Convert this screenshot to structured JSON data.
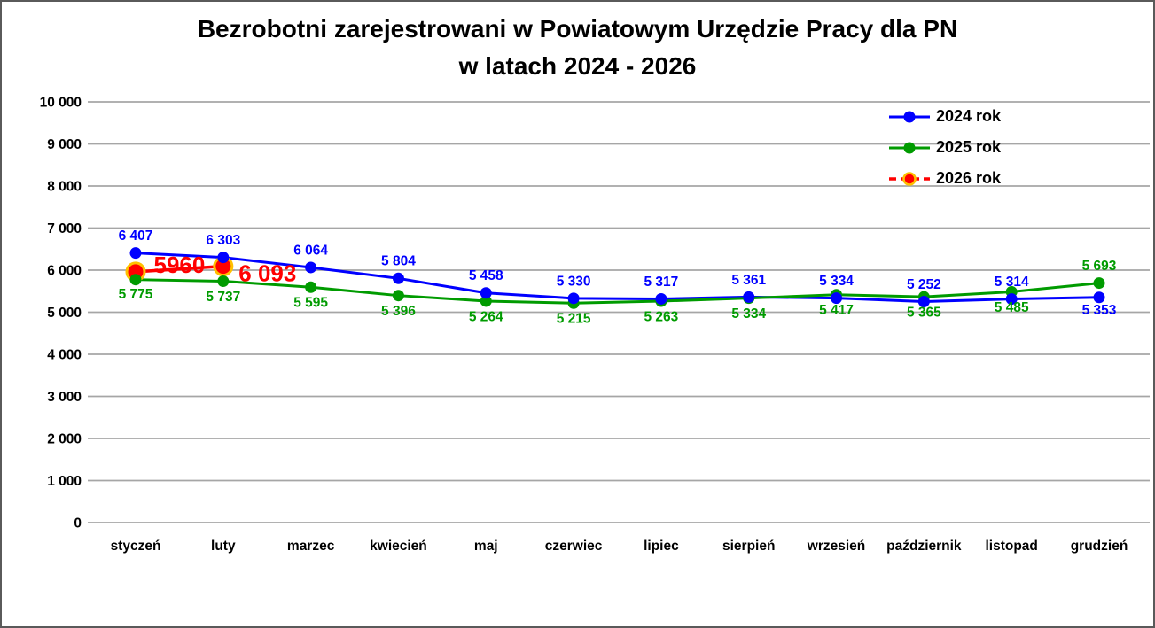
{
  "window": {
    "background": "#FFFFFF",
    "border_color": "#5a5a5a"
  },
  "title": {
    "line1": "Bezrobotni zarejestrowani w Powiatowym Urzędzie Pracy dla PN",
    "line2": "w latach 2024 - 2026"
  },
  "chart_data": {
    "type": "line",
    "title": "Bezrobotni zarejestrowani w Powiatowym Urzędzie Pracy dla PN w latach 2024 - 2026",
    "categories": [
      "styczeń",
      "luty",
      "marzec",
      "kwiecień",
      "maj",
      "czerwiec",
      "lipiec",
      "sierpień",
      "wrzesień",
      "październik",
      "listopad",
      "grudzień"
    ],
    "series": [
      {
        "name": "2024 rok",
        "color": "#0000FF",
        "values": [
          6407,
          6303,
          6064,
          5804,
          5458,
          5330,
          5317,
          5361,
          5334,
          5252,
          5314,
          5353
        ],
        "labels": [
          "6 407",
          "6 303",
          "6 064",
          "5 804",
          "5 458",
          "5 330",
          "5 317",
          "5 361",
          "5 334",
          "5 252",
          "5 314",
          "5 353"
        ]
      },
      {
        "name": "2025 rok",
        "color": "#009B00",
        "values": [
          5775,
          5737,
          5595,
          5396,
          5264,
          5215,
          5263,
          5334,
          5417,
          5365,
          5485,
          5693
        ],
        "labels": [
          "5 775",
          "5 737",
          "5 595",
          "5 396",
          "5 264",
          "5 215",
          "5 263",
          "5 334",
          "5 417",
          "5 365",
          "5 485",
          "5 693"
        ]
      },
      {
        "name": "2026 rok",
        "color": "#FF0000",
        "marker_ring": "#FFC000",
        "values": [
          5960,
          6093,
          null,
          null,
          null,
          null,
          null,
          null,
          null,
          null,
          null,
          null
        ],
        "labels": [
          "5960",
          "6 093"
        ]
      }
    ],
    "ylim": [
      0,
      10000
    ],
    "ytick_step": 1000,
    "ytick_labels": [
      "0",
      "1 000",
      "2 000",
      "3 000",
      "4 000",
      "5 000",
      "6 000",
      "7 000",
      "8 000",
      "9 000",
      "10 000"
    ],
    "grid": true,
    "grid_color": "#A6A6A6",
    "axis_text_color": "#000000",
    "legend_position": "top-right-inside",
    "xlabel": "",
    "ylabel": ""
  }
}
